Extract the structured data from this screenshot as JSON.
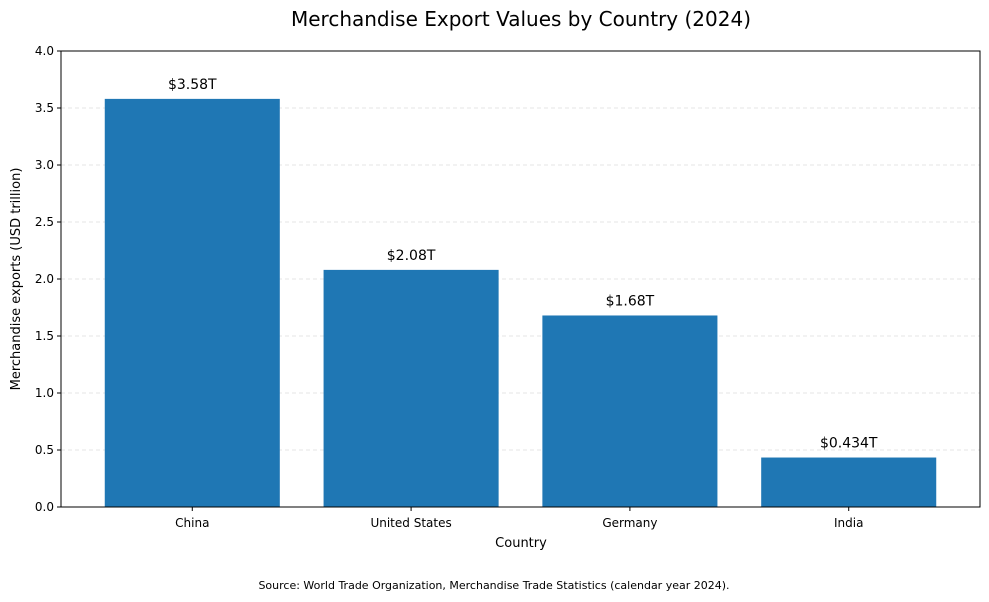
{
  "chart_data": {
    "type": "bar",
    "title": "Merchandise Export Values by Country (2024)",
    "xlabel": "Country",
    "ylabel": "Merchandise exports (USD trillion)",
    "categories": [
      "China",
      "United States",
      "Germany",
      "India"
    ],
    "values": [
      3.58,
      2.08,
      1.68,
      0.434
    ],
    "data_labels": [
      "$3.58T",
      "$2.08T",
      "$1.68T",
      "$0.434T"
    ],
    "ylim": [
      0,
      4.0
    ],
    "yticks": [
      0.0,
      0.5,
      1.0,
      1.5,
      2.0,
      2.5,
      3.0,
      3.5,
      4.0
    ],
    "ytick_labels": [
      "0.0",
      "0.5",
      "1.0",
      "1.5",
      "2.0",
      "2.5",
      "3.0",
      "3.5",
      "4.0"
    ],
    "grid": "horizontal dashed",
    "bar_color": "#1f77b4",
    "source": "Source: World Trade Organization, Merchandise Trade Statistics (calendar year 2024)."
  }
}
